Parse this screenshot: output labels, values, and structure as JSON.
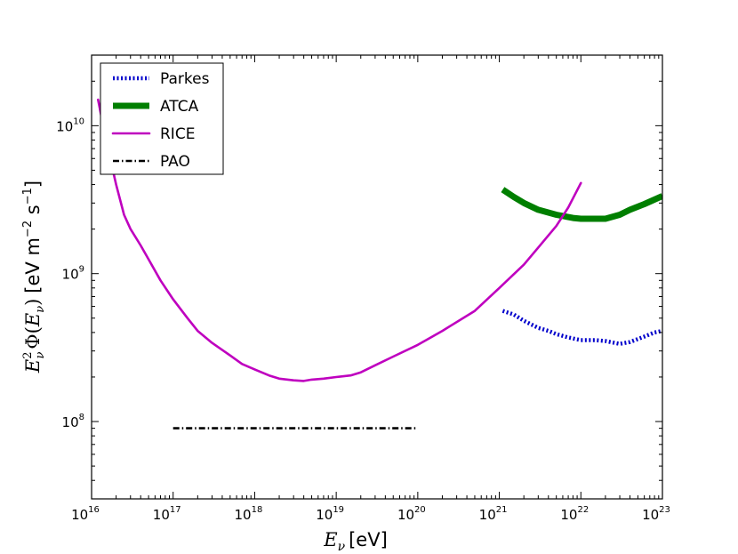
{
  "chart_data": {
    "type": "line",
    "xscale": "log",
    "yscale": "log",
    "xlim": [
      1e+16,
      1e+23
    ],
    "ylim": [
      30000000.0,
      30000000000.0
    ],
    "xlabel": "E_ν [eV]",
    "xlabel_parts": {
      "var": "E",
      "sub": "ν",
      "unit": "[eV]"
    },
    "ylabel": "E_ν^2 Φ(E_ν) [eV m^-2 s^-1]",
    "ylabel_parts": {
      "e": "E",
      "e_sup": "2",
      "e_sub": "ν",
      "phi": "Φ(",
      "phi_var": "E",
      "phi_sub": "ν",
      "phi_close": ")",
      "unit_open": "[eV m",
      "unit_m_exp": "−2",
      "unit_s": " s",
      "unit_s_exp": "−1",
      "unit_close": "]"
    },
    "x_ticks": [
      {
        "base": "10",
        "exp": "16",
        "value": 1e+16
      },
      {
        "base": "10",
        "exp": "17",
        "value": 1e+17
      },
      {
        "base": "10",
        "exp": "18",
        "value": 1e+18
      },
      {
        "base": "10",
        "exp": "19",
        "value": 1e+19
      },
      {
        "base": "10",
        "exp": "20",
        "value": 1e+20
      },
      {
        "base": "10",
        "exp": "21",
        "value": 1e+21
      },
      {
        "base": "10",
        "exp": "22",
        "value": 1e+22
      },
      {
        "base": "10",
        "exp": "23",
        "value": 1e+23
      }
    ],
    "y_ticks": [
      {
        "base": "10",
        "exp": "8",
        "value": 100000000.0
      },
      {
        "base": "10",
        "exp": "9",
        "value": 1000000000.0
      },
      {
        "base": "10",
        "exp": "10",
        "value": 10000000000.0
      }
    ],
    "legend_position": "top-left",
    "series": [
      {
        "name": "Parkes",
        "color": "#0000cc",
        "style": "dotted",
        "x": [
          1.1e+21,
          1.5e+21,
          2e+21,
          3e+21,
          4e+21,
          5e+21,
          7e+21,
          1e+22,
          1.5e+22,
          2e+22,
          3e+22,
          4e+22,
          6e+22,
          8e+22,
          1e+23
        ],
        "y": [
          560000000.0,
          530000000.0,
          480000000.0,
          430000000.0,
          410000000.0,
          390000000.0,
          370000000.0,
          355000000.0,
          355000000.0,
          350000000.0,
          335000000.0,
          345000000.0,
          375000000.0,
          400000000.0,
          410000000.0
        ]
      },
      {
        "name": "ATCA",
        "color": "#007f00",
        "style": "solid-thick",
        "x": [
          1.1e+21,
          1.5e+21,
          2e+21,
          3e+21,
          5e+21,
          8e+21,
          1e+22,
          1.5e+22,
          2e+22,
          3e+22,
          4e+22,
          6e+22,
          1e+23
        ],
        "y": [
          3700000000.0,
          3300000000.0,
          3000000000.0,
          2700000000.0,
          2500000000.0,
          2380000000.0,
          2350000000.0,
          2350000000.0,
          2350000000.0,
          2500000000.0,
          2700000000.0,
          2950000000.0,
          3350000000.0
        ]
      },
      {
        "name": "RICE",
        "color": "#bf00bf",
        "style": "solid",
        "x": [
          1.2e+16,
          1.5e+16,
          2e+16,
          2.5e+16,
          3e+16,
          4e+16,
          5e+16,
          7e+16,
          1e+17,
          1.5e+17,
          2e+17,
          3e+17,
          5e+17,
          7e+17,
          1e+18,
          1.5e+18,
          2e+18,
          3e+18,
          4e+18,
          5e+18,
          7e+18,
          1e+19,
          1.5e+19,
          2e+19,
          3e+19,
          5e+19,
          1e+20,
          2e+20,
          5e+20,
          1e+21,
          2e+21,
          3e+21,
          5e+21,
          7e+21,
          1e+22
        ],
        "y": [
          15000000000.0,
          8000000000.0,
          4000000000.0,
          2500000000.0,
          2000000000.0,
          1550000000.0,
          1250000000.0,
          900000000.0,
          670000000.0,
          500000000.0,
          410000000.0,
          340000000.0,
          280000000.0,
          245000000.0,
          225000000.0,
          205000000.0,
          195000000.0,
          190000000.0,
          188000000.0,
          192000000.0,
          195000000.0,
          200000000.0,
          205000000.0,
          215000000.0,
          240000000.0,
          275000000.0,
          330000000.0,
          410000000.0,
          560000000.0,
          800000000.0,
          1150000000.0,
          1500000000.0,
          2100000000.0,
          2800000000.0,
          4100000000.0
        ]
      },
      {
        "name": "PAO",
        "color": "#000000",
        "style": "dashdot",
        "x": [
          1e+17,
          1e+20
        ],
        "y": [
          90000000.0,
          90000000.0
        ]
      }
    ]
  }
}
